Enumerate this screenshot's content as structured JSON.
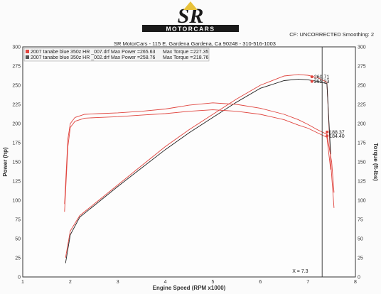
{
  "header": {
    "logo_text": "SR",
    "logo_subtext": "MOTORCARS",
    "shop_line": "SR MotorCars - 115 E. Gardena  Gardena, Ca 90248 - 310-516-1003",
    "correction": "CF: UNCORRECTED  Smoothing: 2"
  },
  "colors": {
    "red": "#e0453f",
    "dark": "#222222",
    "grid": "#9a9a9a"
  },
  "chart_data": {
    "type": "line",
    "xlabel": "Engine Speed (RPM x1000)",
    "ylabel_left": "Power (hp)",
    "ylabel_right": "Torque (ft-lbs)",
    "xlim": [
      1,
      8
    ],
    "ylim": [
      0,
      300
    ],
    "x_ticks": [
      1,
      2,
      3,
      4,
      5,
      6,
      7,
      8
    ],
    "y_ticks": [
      0,
      25,
      50,
      75,
      100,
      125,
      150,
      175,
      200,
      225,
      250,
      275,
      300
    ],
    "grid": true,
    "legend_position": "top-left",
    "legend": [
      {
        "run": "2007 tanabe blue 350z HR _007.drf",
        "power_label": "Max Power =",
        "power": "265.63",
        "torque_label": "Max Torque =",
        "torque": "227.35"
      },
      {
        "run": "2007 tanabe blue 350z HR _002.drf",
        "power_label": "Max Power =",
        "power": "258.76",
        "torque_label": "Max Torque =",
        "torque": "218.76"
      }
    ],
    "cursor": {
      "label": "X = 7.3",
      "x": 7.3
    },
    "value_labels": [
      {
        "text": "260.71",
        "x": 7.1,
        "y": 261
      },
      {
        "text": "255.23",
        "x": 7.1,
        "y": 255
      },
      {
        "text": "188.37",
        "x": 7.42,
        "y": 189
      },
      {
        "text": "184.40",
        "x": 7.42,
        "y": 184
      }
    ],
    "series": [
      {
        "color": "red",
        "x": [
          1.9,
          2.0,
          2.2,
          2.5,
          3.0,
          3.5,
          4.0,
          4.5,
          5.0,
          5.5,
          6.0,
          6.5,
          6.8,
          7.0,
          7.2,
          7.4,
          7.48,
          7.55
        ],
        "y": [
          25,
          60,
          80,
          95,
          120,
          145,
          170,
          192,
          212,
          232,
          250,
          262,
          264,
          263,
          260,
          254,
          150,
          90
        ]
      },
      {
        "color": "dark",
        "x": [
          1.9,
          2.0,
          2.2,
          2.5,
          3.0,
          3.5,
          4.0,
          4.5,
          5.0,
          5.5,
          6.0,
          6.5,
          6.8,
          7.0,
          7.2,
          7.4,
          7.48
        ],
        "y": [
          18,
          55,
          78,
          93,
          118,
          142,
          166,
          188,
          208,
          228,
          246,
          256,
          258,
          257,
          255,
          252,
          160
        ]
      },
      {
        "color": "red",
        "x": [
          1.88,
          1.95,
          2.0,
          2.1,
          2.3,
          2.6,
          3.0,
          3.5,
          4.0,
          4.5,
          5.0,
          5.5,
          6.0,
          6.5,
          6.8,
          7.0,
          7.2,
          7.4,
          7.5,
          7.55
        ],
        "y": [
          95,
          180,
          200,
          208,
          212,
          213,
          214,
          216,
          219,
          224,
          227,
          225,
          220,
          212,
          205,
          199,
          192,
          186,
          150,
          110
        ]
      },
      {
        "color": "red",
        "x": [
          1.88,
          1.95,
          2.0,
          2.1,
          2.3,
          2.6,
          3.0,
          3.5,
          4.0,
          4.5,
          5.0,
          5.5,
          6.0,
          6.5,
          6.8,
          7.0,
          7.2,
          7.4,
          7.48
        ],
        "y": [
          85,
          170,
          195,
          203,
          207,
          208,
          209,
          211,
          213,
          216,
          218,
          216,
          212,
          205,
          198,
          194,
          188,
          182,
          140
        ]
      }
    ]
  }
}
